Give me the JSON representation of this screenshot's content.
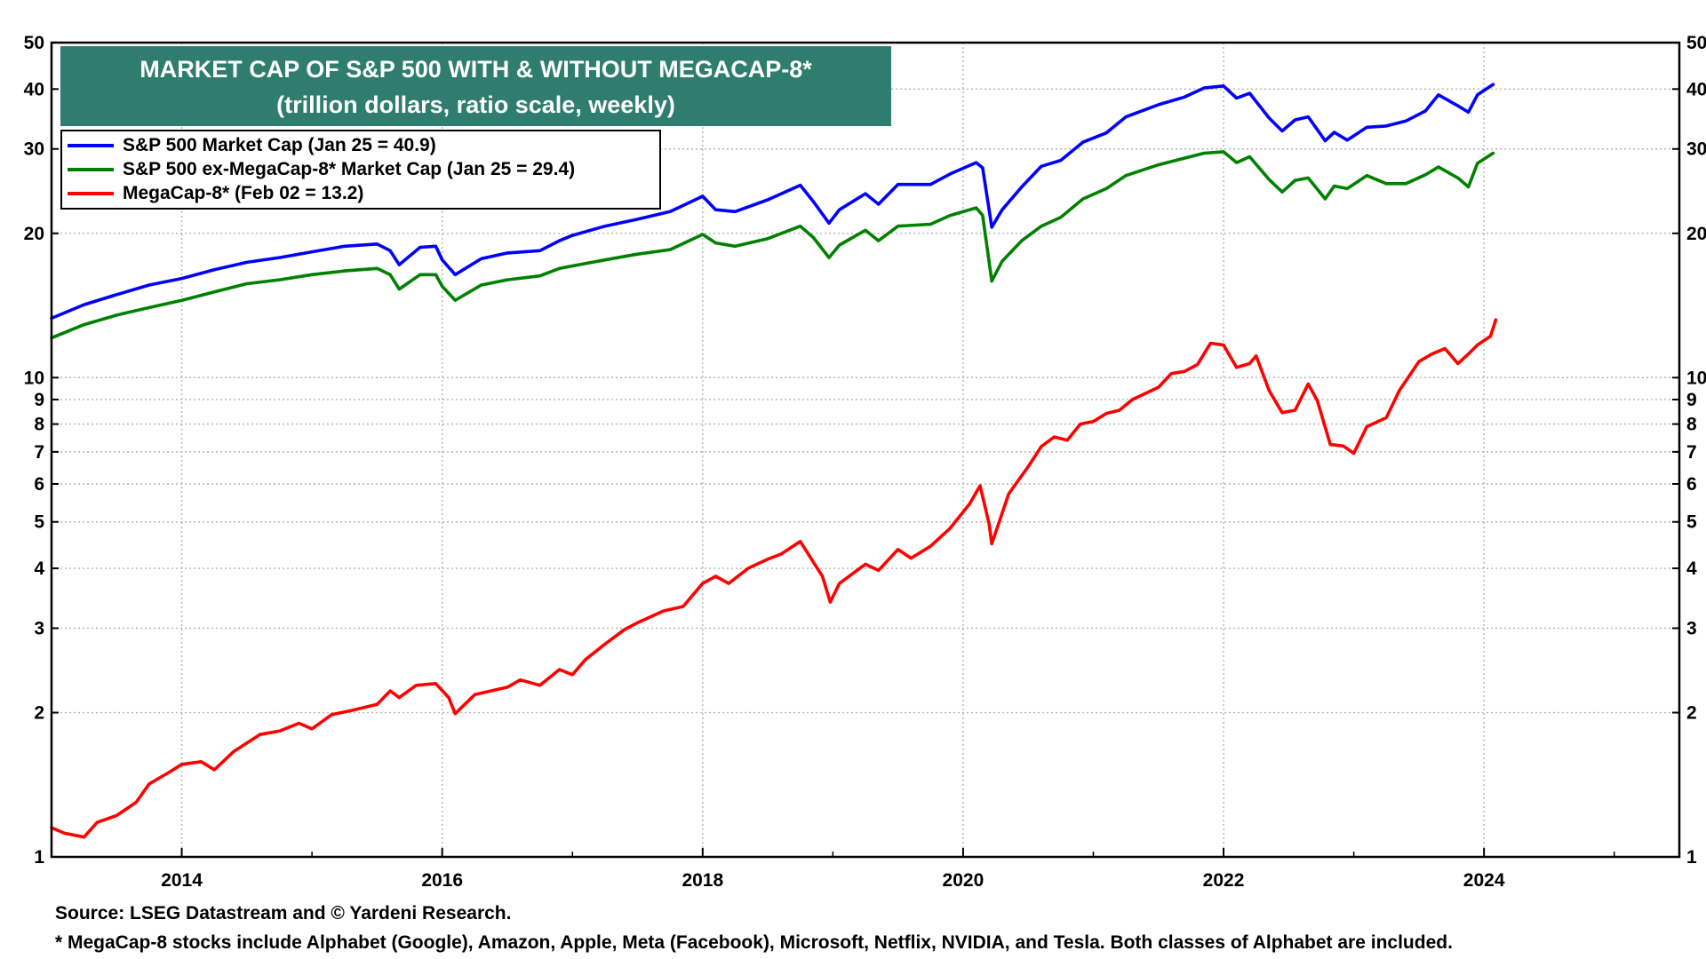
{
  "chart_data": {
    "type": "line",
    "title": "MARKET CAP OF S&P 500 WITH & WITHOUT MEGACAP-8*",
    "subtitle": "(trillion dollars, ratio scale, weekly)",
    "y_scale": "log",
    "ylim": [
      1,
      50
    ],
    "xlim": [
      2013.0,
      2025.5
    ],
    "y_ticks": [
      1,
      2,
      3,
      4,
      5,
      6,
      7,
      8,
      9,
      10,
      20,
      30,
      40,
      50
    ],
    "y_tick_labels": [
      "1",
      "2",
      "3",
      "4",
      "5",
      "6",
      "7",
      "8",
      "9",
      "10",
      "20",
      "30",
      "40",
      "50"
    ],
    "x_ticks": [
      2014,
      2016,
      2018,
      2020,
      2022,
      2024
    ],
    "x_tick_labels": [
      "2014",
      "2016",
      "2018",
      "2020",
      "2022",
      "2024"
    ],
    "legend_position": "top-left",
    "series": [
      {
        "name": "S&P 500 Market Cap (Jan 25 = 40.9)",
        "color": "#0000ff",
        "points": [
          [
            2013.0,
            13.3
          ],
          [
            2013.25,
            14.2
          ],
          [
            2013.5,
            14.9
          ],
          [
            2013.75,
            15.6
          ],
          [
            2014.0,
            16.1
          ],
          [
            2014.25,
            16.8
          ],
          [
            2014.5,
            17.4
          ],
          [
            2014.75,
            17.8
          ],
          [
            2015.0,
            18.3
          ],
          [
            2015.25,
            18.8
          ],
          [
            2015.5,
            19.0
          ],
          [
            2015.6,
            18.4
          ],
          [
            2015.67,
            17.2
          ],
          [
            2015.83,
            18.7
          ],
          [
            2015.95,
            18.8
          ],
          [
            2016.0,
            17.6
          ],
          [
            2016.1,
            16.4
          ],
          [
            2016.3,
            17.7
          ],
          [
            2016.5,
            18.2
          ],
          [
            2016.75,
            18.4
          ],
          [
            2016.9,
            19.3
          ],
          [
            2017.0,
            19.8
          ],
          [
            2017.25,
            20.7
          ],
          [
            2017.5,
            21.4
          ],
          [
            2017.75,
            22.2
          ],
          [
            2018.0,
            23.9
          ],
          [
            2018.1,
            22.4
          ],
          [
            2018.25,
            22.2
          ],
          [
            2018.5,
            23.5
          ],
          [
            2018.75,
            25.2
          ],
          [
            2018.85,
            23.3
          ],
          [
            2018.97,
            21.0
          ],
          [
            2019.05,
            22.4
          ],
          [
            2019.25,
            24.2
          ],
          [
            2019.35,
            23.0
          ],
          [
            2019.5,
            25.3
          ],
          [
            2019.75,
            25.3
          ],
          [
            2019.9,
            26.6
          ],
          [
            2020.1,
            28.1
          ],
          [
            2020.15,
            27.4
          ],
          [
            2020.22,
            20.6
          ],
          [
            2020.3,
            22.4
          ],
          [
            2020.45,
            25.0
          ],
          [
            2020.6,
            27.6
          ],
          [
            2020.75,
            28.4
          ],
          [
            2020.92,
            31.0
          ],
          [
            2021.1,
            32.4
          ],
          [
            2021.25,
            35.0
          ],
          [
            2021.5,
            37.1
          ],
          [
            2021.7,
            38.5
          ],
          [
            2021.85,
            40.2
          ],
          [
            2022.0,
            40.6
          ],
          [
            2022.1,
            38.3
          ],
          [
            2022.2,
            39.2
          ],
          [
            2022.35,
            34.8
          ],
          [
            2022.45,
            32.7
          ],
          [
            2022.55,
            34.5
          ],
          [
            2022.65,
            35.0
          ],
          [
            2022.78,
            31.2
          ],
          [
            2022.85,
            32.5
          ],
          [
            2022.95,
            31.3
          ],
          [
            2023.1,
            33.3
          ],
          [
            2023.25,
            33.5
          ],
          [
            2023.4,
            34.3
          ],
          [
            2023.55,
            36.0
          ],
          [
            2023.65,
            38.9
          ],
          [
            2023.8,
            36.9
          ],
          [
            2023.88,
            35.8
          ],
          [
            2023.95,
            38.9
          ],
          [
            2024.07,
            40.9
          ]
        ]
      },
      {
        "name": "S&P 500 ex-MegaCap-8* Market Cap (Jan 25 = 29.4)",
        "color": "#008000",
        "points": [
          [
            2013.0,
            12.1
          ],
          [
            2013.25,
            12.9
          ],
          [
            2013.5,
            13.5
          ],
          [
            2013.75,
            14.0
          ],
          [
            2014.0,
            14.5
          ],
          [
            2014.25,
            15.1
          ],
          [
            2014.5,
            15.7
          ],
          [
            2014.75,
            16.0
          ],
          [
            2015.0,
            16.4
          ],
          [
            2015.25,
            16.7
          ],
          [
            2015.5,
            16.9
          ],
          [
            2015.6,
            16.4
          ],
          [
            2015.67,
            15.3
          ],
          [
            2015.83,
            16.4
          ],
          [
            2015.95,
            16.4
          ],
          [
            2016.0,
            15.5
          ],
          [
            2016.1,
            14.5
          ],
          [
            2016.3,
            15.6
          ],
          [
            2016.5,
            16.0
          ],
          [
            2016.75,
            16.3
          ],
          [
            2016.9,
            16.9
          ],
          [
            2017.0,
            17.1
          ],
          [
            2017.25,
            17.6
          ],
          [
            2017.5,
            18.1
          ],
          [
            2017.75,
            18.5
          ],
          [
            2018.0,
            19.9
          ],
          [
            2018.1,
            19.1
          ],
          [
            2018.25,
            18.8
          ],
          [
            2018.5,
            19.5
          ],
          [
            2018.75,
            20.7
          ],
          [
            2018.85,
            19.6
          ],
          [
            2018.97,
            17.8
          ],
          [
            2019.05,
            18.9
          ],
          [
            2019.25,
            20.3
          ],
          [
            2019.35,
            19.3
          ],
          [
            2019.5,
            20.7
          ],
          [
            2019.75,
            20.9
          ],
          [
            2019.9,
            21.8
          ],
          [
            2020.1,
            22.6
          ],
          [
            2020.15,
            21.8
          ],
          [
            2020.22,
            15.9
          ],
          [
            2020.3,
            17.5
          ],
          [
            2020.45,
            19.3
          ],
          [
            2020.6,
            20.7
          ],
          [
            2020.75,
            21.6
          ],
          [
            2020.92,
            23.6
          ],
          [
            2021.1,
            24.8
          ],
          [
            2021.25,
            26.4
          ],
          [
            2021.5,
            27.8
          ],
          [
            2021.7,
            28.7
          ],
          [
            2021.85,
            29.4
          ],
          [
            2022.0,
            29.6
          ],
          [
            2022.1,
            28.1
          ],
          [
            2022.2,
            28.9
          ],
          [
            2022.35,
            25.9
          ],
          [
            2022.45,
            24.4
          ],
          [
            2022.55,
            25.8
          ],
          [
            2022.65,
            26.1
          ],
          [
            2022.78,
            23.6
          ],
          [
            2022.85,
            25.1
          ],
          [
            2022.95,
            24.8
          ],
          [
            2023.1,
            26.4
          ],
          [
            2023.25,
            25.4
          ],
          [
            2023.4,
            25.4
          ],
          [
            2023.55,
            26.5
          ],
          [
            2023.65,
            27.5
          ],
          [
            2023.8,
            26.1
          ],
          [
            2023.88,
            25.0
          ],
          [
            2023.95,
            28.0
          ],
          [
            2024.07,
            29.4
          ]
        ]
      },
      {
        "name": "MegaCap-8* (Feb 02 = 13.2)",
        "color": "#ff0000",
        "points": [
          [
            2013.0,
            1.15
          ],
          [
            2013.1,
            1.12
          ],
          [
            2013.25,
            1.1
          ],
          [
            2013.35,
            1.18
          ],
          [
            2013.5,
            1.22
          ],
          [
            2013.65,
            1.3
          ],
          [
            2013.75,
            1.42
          ],
          [
            2013.9,
            1.5
          ],
          [
            2014.0,
            1.56
          ],
          [
            2014.15,
            1.58
          ],
          [
            2014.25,
            1.52
          ],
          [
            2014.4,
            1.66
          ],
          [
            2014.6,
            1.8
          ],
          [
            2014.75,
            1.83
          ],
          [
            2014.9,
            1.9
          ],
          [
            2015.0,
            1.85
          ],
          [
            2015.15,
            1.98
          ],
          [
            2015.3,
            2.02
          ],
          [
            2015.5,
            2.08
          ],
          [
            2015.6,
            2.22
          ],
          [
            2015.67,
            2.15
          ],
          [
            2015.8,
            2.28
          ],
          [
            2015.95,
            2.3
          ],
          [
            2016.05,
            2.15
          ],
          [
            2016.1,
            1.99
          ],
          [
            2016.25,
            2.18
          ],
          [
            2016.5,
            2.26
          ],
          [
            2016.6,
            2.34
          ],
          [
            2016.75,
            2.28
          ],
          [
            2016.9,
            2.46
          ],
          [
            2017.0,
            2.4
          ],
          [
            2017.1,
            2.58
          ],
          [
            2017.25,
            2.78
          ],
          [
            2017.4,
            2.98
          ],
          [
            2017.5,
            3.08
          ],
          [
            2017.7,
            3.26
          ],
          [
            2017.85,
            3.33
          ],
          [
            2018.0,
            3.72
          ],
          [
            2018.1,
            3.85
          ],
          [
            2018.2,
            3.72
          ],
          [
            2018.35,
            4.0
          ],
          [
            2018.5,
            4.18
          ],
          [
            2018.6,
            4.28
          ],
          [
            2018.75,
            4.55
          ],
          [
            2018.85,
            4.12
          ],
          [
            2018.92,
            3.85
          ],
          [
            2018.98,
            3.4
          ],
          [
            2019.05,
            3.72
          ],
          [
            2019.25,
            4.08
          ],
          [
            2019.35,
            3.96
          ],
          [
            2019.5,
            4.38
          ],
          [
            2019.6,
            4.2
          ],
          [
            2019.75,
            4.45
          ],
          [
            2019.9,
            4.85
          ],
          [
            2020.05,
            5.45
          ],
          [
            2020.13,
            5.95
          ],
          [
            2020.2,
            4.95
          ],
          [
            2020.22,
            4.5
          ],
          [
            2020.35,
            5.72
          ],
          [
            2020.5,
            6.52
          ],
          [
            2020.6,
            7.18
          ],
          [
            2020.7,
            7.52
          ],
          [
            2020.8,
            7.4
          ],
          [
            2020.9,
            8.0
          ],
          [
            2021.0,
            8.1
          ],
          [
            2021.1,
            8.42
          ],
          [
            2021.2,
            8.55
          ],
          [
            2021.3,
            9.0
          ],
          [
            2021.5,
            9.55
          ],
          [
            2021.6,
            10.2
          ],
          [
            2021.7,
            10.3
          ],
          [
            2021.8,
            10.65
          ],
          [
            2021.9,
            11.8
          ],
          [
            2022.0,
            11.7
          ],
          [
            2022.1,
            10.5
          ],
          [
            2022.2,
            10.7
          ],
          [
            2022.25,
            11.1
          ],
          [
            2022.35,
            9.4
          ],
          [
            2022.45,
            8.45
          ],
          [
            2022.55,
            8.55
          ],
          [
            2022.65,
            9.7
          ],
          [
            2022.72,
            8.95
          ],
          [
            2022.82,
            7.25
          ],
          [
            2022.92,
            7.2
          ],
          [
            2023.0,
            6.95
          ],
          [
            2023.1,
            7.9
          ],
          [
            2023.25,
            8.25
          ],
          [
            2023.35,
            9.4
          ],
          [
            2023.5,
            10.8
          ],
          [
            2023.6,
            11.2
          ],
          [
            2023.7,
            11.5
          ],
          [
            2023.8,
            10.7
          ],
          [
            2023.88,
            11.2
          ],
          [
            2023.95,
            11.7
          ],
          [
            2024.05,
            12.2
          ],
          [
            2024.09,
            13.2
          ]
        ]
      }
    ]
  },
  "legend": {
    "items": [
      {
        "label": "S&P 500 Market Cap (Jan 25 = 40.9)",
        "color": "#0000ff"
      },
      {
        "label": "S&P 500 ex-MegaCap-8* Market Cap (Jan 25 = 29.4)",
        "color": "#008000"
      },
      {
        "label": "MegaCap-8* (Feb 02 = 13.2)",
        "color": "#ff0000"
      }
    ]
  },
  "footnotes": {
    "source": "Source: LSEG Datastream and © Yardeni Research.",
    "note": "* MegaCap-8 stocks include Alphabet (Google), Amazon, Apple, Meta (Facebook), Microsoft, Netflix, NVIDIA, and Tesla. Both classes of Alphabet are included."
  },
  "colors": {
    "title_background": "#2e7d6e",
    "title_text": "#ffffff",
    "grid": "#b4b4b4"
  }
}
